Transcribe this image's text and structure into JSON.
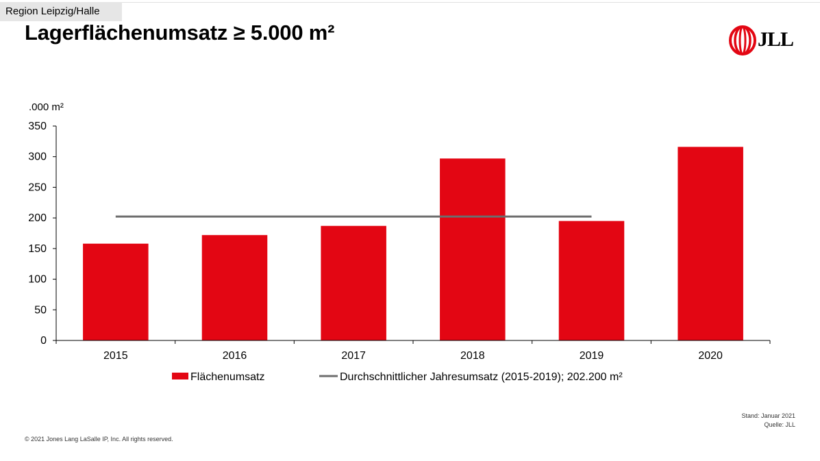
{
  "region_label": "Region Leipzig/Halle",
  "title": "Lagerflächenumsatz ≥ 5.000 m²",
  "logo_text": "JLL",
  "stand": "Stand: Januar 2021",
  "quelle": "Quelle: JLL",
  "copyright": "© 2021 Jones Lang LaSalle IP, Inc. All rights reserved.",
  "colors": {
    "bar": "#e30613",
    "average_line": "#6d6d6d",
    "logo": "#e30613"
  },
  "chart_data": {
    "type": "bar",
    "ylabel": ".000 m²",
    "ylim": [
      0,
      350
    ],
    "yticks": [
      0,
      50,
      100,
      150,
      200,
      250,
      300,
      350
    ],
    "categories": [
      "2015",
      "2016",
      "2017",
      "2018",
      "2019",
      "2020"
    ],
    "series": [
      {
        "name": "Flächenumsatz",
        "type": "bar",
        "values": [
          158,
          172,
          187,
          297,
          195,
          316
        ]
      }
    ],
    "average_line": {
      "name": "Durchschnittlicher Jahresumsatz (2015-2019); 202.200 m²",
      "value": 202.2,
      "from": "2015",
      "to": "2019"
    },
    "legend": "bottom",
    "grid": false
  }
}
